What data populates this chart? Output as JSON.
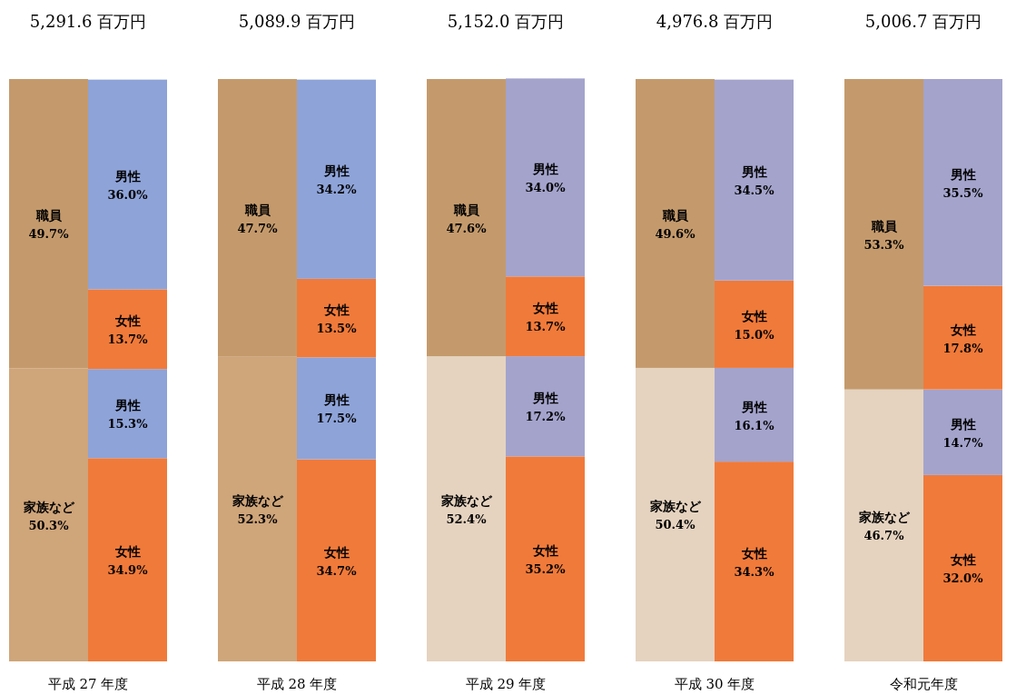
{
  "chart_data": [
    {
      "type": "bar",
      "stacked": true,
      "title": "5,291.6 百万円",
      "xlabel": "平成 27 年度",
      "categories": [
        null,
        null
      ],
      "ylim": [
        0,
        100
      ],
      "series": [
        {
          "name": "家族など",
          "color": "#cfa57a",
          "values": [
            50.3,
            null
          ],
          "value_labels": [
            "50.3%",
            null
          ]
        },
        {
          "name": "職員",
          "color": "#c49a6c",
          "values": [
            49.7,
            null
          ],
          "value_labels": [
            "49.7%",
            null
          ]
        },
        {
          "name": "女性",
          "color": "#f07a3a",
          "values": [
            null,
            34.9
          ],
          "value_labels": [
            null,
            "34.9%"
          ]
        },
        {
          "name": "男性",
          "color": "#8ea3d8",
          "values": [
            null,
            15.3
          ],
          "value_labels": [
            null,
            "15.3%"
          ]
        },
        {
          "name": "女性",
          "color": "#f07a3a",
          "values": [
            null,
            13.7
          ],
          "value_labels": [
            null,
            "13.7%"
          ]
        },
        {
          "name": "男性",
          "color": "#8ea3d8",
          "values": [
            null,
            36.0
          ],
          "value_labels": [
            null,
            "36.0%"
          ]
        }
      ]
    },
    {
      "type": "bar",
      "stacked": true,
      "title": "5,089.9 百万円",
      "xlabel": "平成 28 年度",
      "categories": [
        null,
        null
      ],
      "ylim": [
        0,
        100
      ],
      "series": [
        {
          "name": "家族など",
          "color": "#cfa57a",
          "values": [
            52.3,
            null
          ],
          "value_labels": [
            "52.3%",
            null
          ]
        },
        {
          "name": "職員",
          "color": "#c49a6c",
          "values": [
            47.7,
            null
          ],
          "value_labels": [
            "47.7%",
            null
          ]
        },
        {
          "name": "女性",
          "color": "#f07a3a",
          "values": [
            null,
            34.7
          ],
          "value_labels": [
            null,
            "34.7%"
          ]
        },
        {
          "name": "男性",
          "color": "#8ea3d8",
          "values": [
            null,
            17.5
          ],
          "value_labels": [
            null,
            "17.5%"
          ]
        },
        {
          "name": "女性",
          "color": "#f07a3a",
          "values": [
            null,
            13.5
          ],
          "value_labels": [
            null,
            "13.5%"
          ]
        },
        {
          "name": "男性",
          "color": "#8ea3d8",
          "values": [
            null,
            34.2
          ],
          "value_labels": [
            null,
            "34.2%"
          ]
        }
      ]
    },
    {
      "type": "bar",
      "stacked": true,
      "title": "5,152.0 百万円",
      "xlabel": "平成 29 年度",
      "categories": [
        null,
        null
      ],
      "ylim": [
        0,
        100
      ],
      "series": [
        {
          "name": "家族など",
          "color": "#e5d3bf",
          "values": [
            52.4,
            null
          ],
          "value_labels": [
            "52.4%",
            null
          ]
        },
        {
          "name": "職員",
          "color": "#c49a6c",
          "values": [
            47.6,
            null
          ],
          "value_labels": [
            "47.6%",
            null
          ]
        },
        {
          "name": "女性",
          "color": "#f07a3a",
          "values": [
            null,
            35.2
          ],
          "value_labels": [
            null,
            "35.2%"
          ]
        },
        {
          "name": "男性",
          "color": "#a3a3cc",
          "values": [
            null,
            17.2
          ],
          "value_labels": [
            null,
            "17.2%"
          ]
        },
        {
          "name": "女性",
          "color": "#f07a3a",
          "values": [
            null,
            13.7
          ],
          "value_labels": [
            null,
            "13.7%"
          ]
        },
        {
          "name": "男性",
          "color": "#a3a3cc",
          "values": [
            null,
            34.0
          ],
          "value_labels": [
            null,
            "34.0%"
          ]
        }
      ]
    },
    {
      "type": "bar",
      "stacked": true,
      "title": "4,976.8 百万円",
      "xlabel": "平成 30 年度",
      "categories": [
        null,
        null
      ],
      "ylim": [
        0,
        100
      ],
      "series": [
        {
          "name": "家族など",
          "color": "#e5d3bf",
          "values": [
            50.4,
            null
          ],
          "value_labels": [
            "50.4%",
            null
          ]
        },
        {
          "name": "職員",
          "color": "#c49a6c",
          "values": [
            49.6,
            null
          ],
          "value_labels": [
            "49.6%",
            null
          ]
        },
        {
          "name": "女性",
          "color": "#f07a3a",
          "values": [
            null,
            34.3
          ],
          "value_labels": [
            null,
            "34.3%"
          ]
        },
        {
          "name": "男性",
          "color": "#a3a3cc",
          "values": [
            null,
            16.1
          ],
          "value_labels": [
            null,
            "16.1%"
          ]
        },
        {
          "name": "女性",
          "color": "#f07a3a",
          "values": [
            null,
            15.0
          ],
          "value_labels": [
            null,
            "15.0%"
          ]
        },
        {
          "name": "男性",
          "color": "#a3a3cc",
          "values": [
            null,
            34.5
          ],
          "value_labels": [
            null,
            "34.5%"
          ]
        }
      ]
    },
    {
      "type": "bar",
      "stacked": true,
      "title": "5,006.7 百万円",
      "xlabel": "令和元年度",
      "categories": [
        null,
        null
      ],
      "ylim": [
        0,
        100
      ],
      "series": [
        {
          "name": "家族など",
          "color": "#e5d3bf",
          "values": [
            46.7,
            null
          ],
          "value_labels": [
            "46.7%",
            null
          ]
        },
        {
          "name": "職員",
          "color": "#c49a6c",
          "values": [
            53.3,
            null
          ],
          "value_labels": [
            "53.3%",
            null
          ]
        },
        {
          "name": "女性",
          "color": "#f07a3a",
          "values": [
            null,
            32.0
          ],
          "value_labels": [
            null,
            "32.0%"
          ]
        },
        {
          "name": "男性",
          "color": "#a3a3cc",
          "values": [
            null,
            14.7
          ],
          "value_labels": [
            null,
            "14.7%"
          ]
        },
        {
          "name": "女性",
          "color": "#f07a3a",
          "values": [
            null,
            17.8
          ],
          "value_labels": [
            null,
            "17.8%"
          ]
        },
        {
          "name": "男性",
          "color": "#a3a3cc",
          "values": [
            null,
            35.5
          ],
          "value_labels": [
            null,
            "35.5%"
          ]
        }
      ]
    }
  ]
}
